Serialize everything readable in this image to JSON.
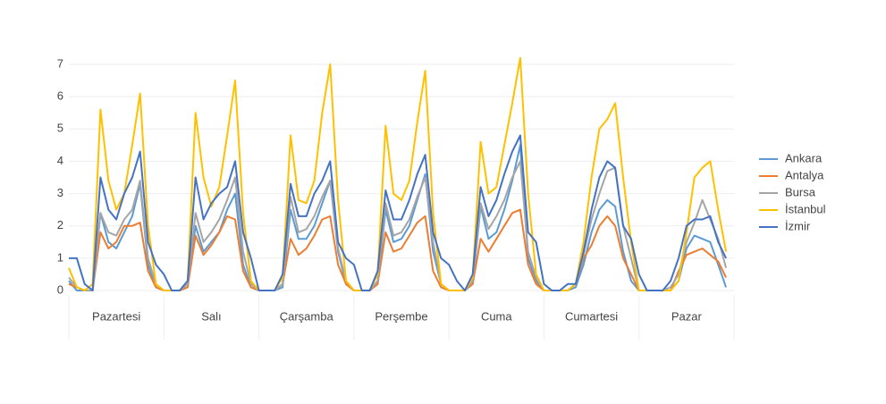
{
  "chart_data": {
    "type": "line",
    "categories": [
      "Pazartesi",
      "Salı",
      "Çarşamba",
      "Perşembe",
      "Cuma",
      "Cumartesi",
      "Pazar"
    ],
    "x": [
      0,
      2,
      4,
      6,
      8,
      10,
      12,
      14,
      16,
      18,
      20,
      22,
      24,
      26,
      28,
      30,
      32,
      34,
      36,
      38,
      40,
      42,
      44,
      46,
      48,
      50,
      52,
      54,
      56,
      58,
      60,
      62,
      64,
      66,
      68,
      70,
      72,
      74,
      76,
      78,
      80,
      82,
      84,
      86,
      88,
      90,
      92,
      94,
      96,
      98,
      100,
      102,
      104,
      106,
      108,
      110,
      112,
      114,
      116,
      118,
      120,
      122,
      124,
      126,
      128,
      130,
      132,
      134,
      136,
      138,
      140,
      142,
      144,
      146,
      148,
      150,
      152,
      154,
      156,
      158,
      160,
      162,
      164,
      166
    ],
    "xlim": [
      0,
      168
    ],
    "ylim": [
      0,
      7
    ],
    "yticks": [
      0,
      1,
      2,
      3,
      4,
      5,
      6,
      7
    ],
    "grid": true,
    "legend": "right",
    "series": [
      {
        "name": "Ankara",
        "color": "#5b9bd5",
        "values": [
          0.3,
          0,
          0,
          0,
          2.4,
          1.5,
          1.3,
          1.8,
          2.3,
          3.3,
          0.8,
          0.1,
          0,
          0,
          0,
          0.1,
          2.0,
          1.2,
          1.5,
          1.8,
          2.5,
          3.0,
          0.8,
          0.1,
          0,
          0,
          0,
          0.1,
          2.5,
          1.6,
          1.6,
          2.0,
          2.7,
          3.4,
          1.2,
          0.2,
          0,
          0,
          0,
          0.2,
          2.5,
          1.5,
          1.6,
          2.0,
          2.8,
          3.6,
          1.2,
          0.2,
          0,
          0,
          0,
          0.2,
          2.6,
          1.6,
          1.8,
          2.5,
          3.4,
          4.5,
          1.0,
          0.3,
          0,
          0,
          0,
          0,
          0.1,
          0.8,
          1.8,
          2.5,
          2.8,
          2.6,
          1.2,
          0.3,
          0,
          0,
          0,
          0,
          0,
          0.3,
          1.3,
          1.7,
          1.6,
          1.5,
          0.8,
          0.1
        ]
      },
      {
        "name": "Antalya",
        "color": "#ed7d31",
        "values": [
          0.2,
          0.1,
          0,
          0,
          1.8,
          1.3,
          1.5,
          2.0,
          2.0,
          2.1,
          0.6,
          0.1,
          0,
          0,
          0,
          0.1,
          1.7,
          1.1,
          1.4,
          1.8,
          2.3,
          2.2,
          0.6,
          0.1,
          0,
          0,
          0,
          0.2,
          1.6,
          1.1,
          1.3,
          1.7,
          2.2,
          2.3,
          0.8,
          0.2,
          0,
          0,
          0,
          0.2,
          1.8,
          1.2,
          1.3,
          1.7,
          2.1,
          2.3,
          0.6,
          0.1,
          0,
          0,
          0,
          0.2,
          1.6,
          1.2,
          1.6,
          2.0,
          2.4,
          2.5,
          0.8,
          0.2,
          0,
          0,
          0,
          0,
          0.2,
          1.0,
          1.4,
          2.0,
          2.3,
          2.0,
          1.0,
          0.5,
          0,
          0,
          0,
          0,
          0,
          0.6,
          1.1,
          1.2,
          1.3,
          1.1,
          0.9,
          0.4
        ]
      },
      {
        "name": "Bursa",
        "color": "#a5a5a5",
        "values": [
          0.4,
          0.1,
          0,
          0,
          2.4,
          1.8,
          1.7,
          2.2,
          2.5,
          3.4,
          1.0,
          0.2,
          0,
          0,
          0,
          0.2,
          2.4,
          1.5,
          1.8,
          2.2,
          2.8,
          3.5,
          1.2,
          0.2,
          0,
          0,
          0,
          0.2,
          2.9,
          1.8,
          1.9,
          2.3,
          2.9,
          3.4,
          1.3,
          0.3,
          0,
          0,
          0,
          0.3,
          2.7,
          1.7,
          1.8,
          2.2,
          2.9,
          3.5,
          1.5,
          0.2,
          0,
          0,
          0,
          0.3,
          2.7,
          1.9,
          2.3,
          2.8,
          3.5,
          4.0,
          1.2,
          0.4,
          0,
          0,
          0,
          0,
          0.2,
          1.1,
          2.2,
          3.0,
          3.7,
          3.8,
          2.0,
          1.0,
          0,
          0,
          0,
          0,
          0.1,
          0.5,
          1.5,
          2.1,
          2.8,
          2.2,
          1.6,
          0.7
        ]
      },
      {
        "name": "İstanbul",
        "color": "#ffc000",
        "values": [
          0.7,
          0.1,
          0,
          0.2,
          5.6,
          3.4,
          2.5,
          3.0,
          4.5,
          6.1,
          2.0,
          0.2,
          0,
          0,
          0,
          0.3,
          5.5,
          3.5,
          2.6,
          3.2,
          4.8,
          6.5,
          2.4,
          0.3,
          0,
          0,
          0,
          0.4,
          4.8,
          2.8,
          2.7,
          3.4,
          5.5,
          7.0,
          2.8,
          0.3,
          0,
          0,
          0,
          0.5,
          5.1,
          3.0,
          2.8,
          3.4,
          5.2,
          6.8,
          2.4,
          0.2,
          0,
          0,
          0,
          0.4,
          4.6,
          3.0,
          3.2,
          4.5,
          5.8,
          7.2,
          3.0,
          0.5,
          0,
          0,
          0,
          0,
          0.2,
          1.5,
          3.5,
          5.0,
          5.3,
          5.8,
          3.5,
          1.5,
          0,
          0,
          0,
          0,
          0,
          0.3,
          1.8,
          3.5,
          3.8,
          4.0,
          2.5,
          1.2
        ]
      },
      {
        "name": "İzmir",
        "color": "#4472c4",
        "values": [
          1.0,
          1.0,
          0.2,
          0,
          3.5,
          2.5,
          2.2,
          3.0,
          3.5,
          4.3,
          1.5,
          0.8,
          0.5,
          0,
          0,
          0.3,
          3.5,
          2.2,
          2.7,
          3.0,
          3.2,
          4.0,
          1.8,
          1.0,
          0,
          0,
          0,
          0.5,
          3.3,
          2.3,
          2.3,
          3.0,
          3.4,
          4.0,
          1.5,
          1.0,
          0.8,
          0,
          0,
          0.6,
          3.1,
          2.2,
          2.2,
          2.8,
          3.6,
          4.2,
          1.8,
          1.0,
          0.8,
          0.3,
          0,
          0.5,
          3.2,
          2.3,
          2.8,
          3.6,
          4.3,
          4.8,
          1.8,
          1.5,
          0.2,
          0,
          0,
          0.2,
          0.2,
          1.2,
          2.5,
          3.5,
          4.0,
          3.8,
          2.0,
          1.6,
          0.5,
          0,
          0,
          0,
          0.3,
          1.0,
          2.0,
          2.2,
          2.2,
          2.3,
          1.5,
          1.0
        ]
      }
    ]
  }
}
